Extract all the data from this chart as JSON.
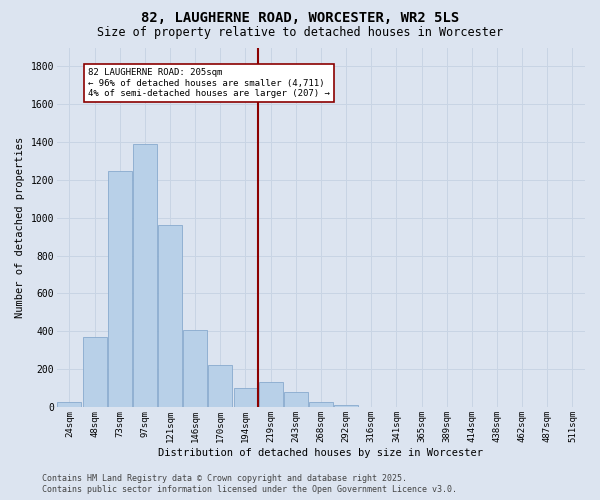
{
  "title": "82, LAUGHERNE ROAD, WORCESTER, WR2 5LS",
  "subtitle": "Size of property relative to detached houses in Worcester",
  "xlabel": "Distribution of detached houses by size in Worcester",
  "ylabel": "Number of detached properties",
  "categories": [
    "24sqm",
    "48sqm",
    "73sqm",
    "97sqm",
    "121sqm",
    "146sqm",
    "170sqm",
    "194sqm",
    "219sqm",
    "243sqm",
    "268sqm",
    "292sqm",
    "316sqm",
    "341sqm",
    "365sqm",
    "389sqm",
    "414sqm",
    "438sqm",
    "462sqm",
    "487sqm",
    "511sqm"
  ],
  "values": [
    28,
    370,
    1245,
    1390,
    960,
    405,
    220,
    100,
    130,
    80,
    28,
    12,
    0,
    0,
    0,
    0,
    0,
    0,
    0,
    0,
    0
  ],
  "bar_color": "#b8d0e8",
  "bar_edge_color": "#88aace",
  "vline_position": 7.48,
  "vline_color": "#8b0000",
  "annotation_text": "82 LAUGHERNE ROAD: 205sqm\n← 96% of detached houses are smaller (4,711)\n4% of semi-detached houses are larger (207) →",
  "grid_color": "#c8d4e4",
  "background_color": "#dce4f0",
  "ylim": [
    0,
    1900
  ],
  "yticks": [
    0,
    200,
    400,
    600,
    800,
    1000,
    1200,
    1400,
    1600,
    1800
  ],
  "footer_line1": "Contains HM Land Registry data © Crown copyright and database right 2025.",
  "footer_line2": "Contains public sector information licensed under the Open Government Licence v3.0."
}
